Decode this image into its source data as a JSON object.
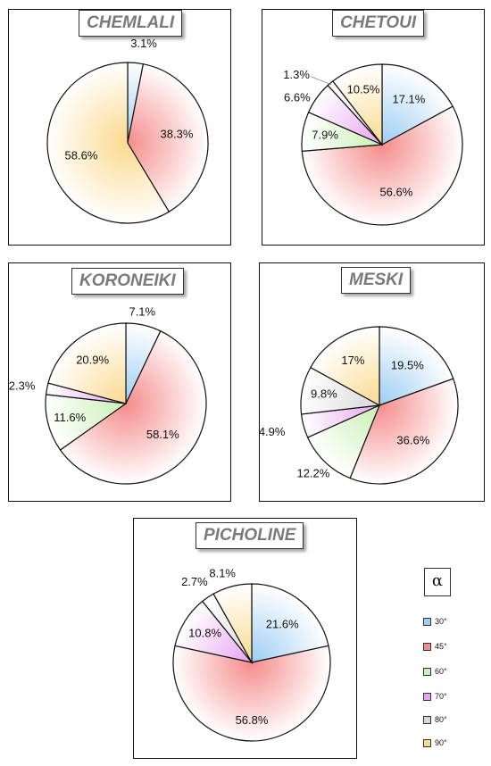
{
  "legend": {
    "title": "α",
    "items": [
      {
        "label": "30°",
        "color": "#9dcdf2"
      },
      {
        "label": "45°",
        "color": "#f58c8c"
      },
      {
        "label": "60°",
        "color": "#c9f0b4"
      },
      {
        "label": "70°",
        "color": "#e7a3f0"
      },
      {
        "label": "80°",
        "color": "#d8d8d8"
      },
      {
        "label": "90°",
        "color": "#fbd98e"
      }
    ]
  },
  "chart_data": [
    {
      "type": "pie",
      "title": "CHEMLALI",
      "slices": [
        {
          "category": "30°",
          "value": 3.1,
          "label": "3.1%"
        },
        {
          "category": "45°",
          "value": 38.3,
          "label": "38.3%"
        },
        {
          "category": "90°",
          "value": 58.6,
          "label": "58.6%"
        }
      ]
    },
    {
      "type": "pie",
      "title": "CHETOUI",
      "slices": [
        {
          "category": "30°",
          "value": 17.1,
          "label": "17.1%"
        },
        {
          "category": "45°",
          "value": 56.6,
          "label": "56.6%"
        },
        {
          "category": "60°",
          "value": 7.9,
          "label": "7.9%"
        },
        {
          "category": "70°",
          "value": 6.6,
          "label": "6.6%"
        },
        {
          "category": "80°",
          "value": 1.3,
          "label": "1.3%"
        },
        {
          "category": "90°",
          "value": 10.5,
          "label": "10.5%"
        }
      ]
    },
    {
      "type": "pie",
      "title": "KORONEIKI",
      "slices": [
        {
          "category": "30°",
          "value": 7.1,
          "label": "7.1%"
        },
        {
          "category": "45°",
          "value": 58.1,
          "label": "58.1%"
        },
        {
          "category": "60°",
          "value": 11.6,
          "label": "11.6%"
        },
        {
          "category": "70°",
          "value": 2.3,
          "label": "2.3%"
        },
        {
          "category": "90°",
          "value": 20.9,
          "label": "20.9%"
        }
      ]
    },
    {
      "type": "pie",
      "title": "MESKI",
      "slices": [
        {
          "category": "30°",
          "value": 19.5,
          "label": "19.5%"
        },
        {
          "category": "45°",
          "value": 36.6,
          "label": "36.6%"
        },
        {
          "category": "60°",
          "value": 12.2,
          "label": "12.2%"
        },
        {
          "category": "70°",
          "value": 4.9,
          "label": "4.9%"
        },
        {
          "category": "80°",
          "value": 9.8,
          "label": "9.8%"
        },
        {
          "category": "90°",
          "value": 17,
          "label": "17%"
        }
      ]
    },
    {
      "type": "pie",
      "title": "PICHOLINE",
      "slices": [
        {
          "category": "30°",
          "value": 21.6,
          "label": "21.6%"
        },
        {
          "category": "45°",
          "value": 56.8,
          "label": "56.8%"
        },
        {
          "category": "70°",
          "value": 10.8,
          "label": "10.8%"
        },
        {
          "category": "80°",
          "value": 2.7,
          "label": "2.7%"
        },
        {
          "category": "90°",
          "value": 8.1,
          "label": "8.1%"
        }
      ]
    }
  ]
}
